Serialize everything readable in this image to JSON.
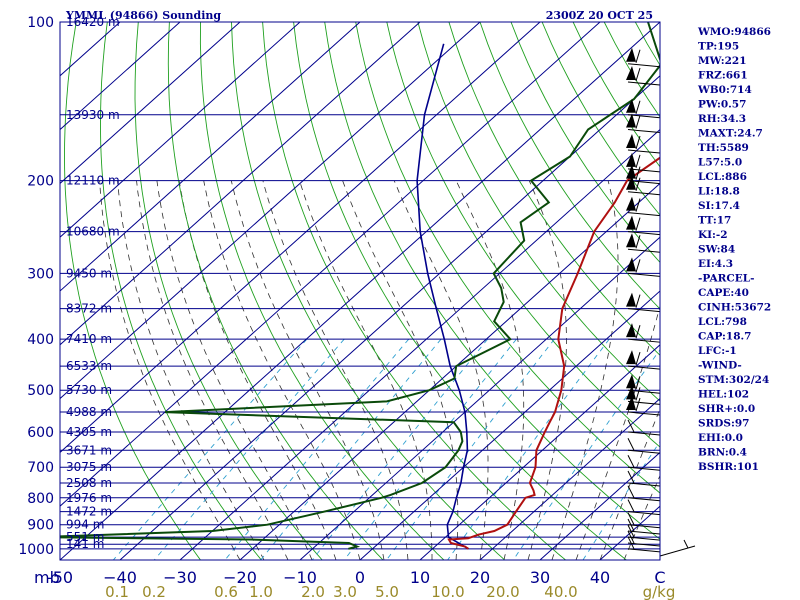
{
  "chart_data": {
    "type": "line",
    "title": "YMML (94866) Sounding",
    "timestamp": "2300Z 20 OCT 25",
    "pressure_levels": [
      100,
      200,
      300,
      400,
      500,
      600,
      700,
      800,
      900,
      1000
    ],
    "pressure_labels": [
      "100",
      "200",
      "300",
      "400",
      "500",
      "600",
      "700",
      "800",
      "900",
      "1000"
    ],
    "height_levels": [
      {
        "p": 100,
        "label": "16420 m"
      },
      {
        "p": 150,
        "label": "13930 m"
      },
      {
        "p": 200,
        "label": "12110 m"
      },
      {
        "p": 250,
        "label": "10680 m"
      },
      {
        "p": 300,
        "label": "9450 m"
      },
      {
        "p": 350,
        "label": "8372 m"
      },
      {
        "p": 400,
        "label": "7410 m"
      },
      {
        "p": 450,
        "label": "6533 m"
      },
      {
        "p": 500,
        "label": "5730 m"
      },
      {
        "p": 550,
        "label": "4988 m"
      },
      {
        "p": 600,
        "label": "4305 m"
      },
      {
        "p": 650,
        "label": "3671 m"
      },
      {
        "p": 700,
        "label": "3075 m"
      },
      {
        "p": 750,
        "label": "2508 m"
      },
      {
        "p": 800,
        "label": "1976 m"
      },
      {
        "p": 850,
        "label": "1472 m"
      },
      {
        "p": 900,
        "label": "994 m"
      },
      {
        "p": 950,
        "label": "551 m"
      },
      {
        "p": 980,
        "label": "141 m"
      }
    ],
    "x_unit_label": "mb",
    "temperature_ticks": [
      -50,
      -40,
      -30,
      -20,
      -10,
      0,
      10,
      20,
      30,
      40,
      50
    ],
    "temperature_tick_labels": [
      "-50",
      "−40",
      "−30",
      "−20",
      "−10",
      "0",
      "10",
      "20",
      "30",
      "40",
      "C"
    ],
    "mixing_ratio_labels": [
      "0.1",
      "0.2",
      "0.6",
      "1.0",
      "2.0",
      "3.0",
      "5.0",
      "10.0",
      "20.0",
      "40.0",
      "g/kg"
    ],
    "mixing_ratio_values": [
      0.1,
      0.2,
      0.6,
      1.0,
      2.0,
      3.0,
      5.0,
      10.0,
      20.0,
      40.0
    ],
    "temperature_profile": [
      [
        1000,
        16
      ],
      [
        990,
        15
      ],
      [
        975,
        12
      ],
      [
        960,
        11
      ],
      [
        955,
        14
      ],
      [
        940,
        15
      ],
      [
        925,
        17
      ],
      [
        900,
        18
      ],
      [
        850,
        17
      ],
      [
        800,
        16
      ],
      [
        790,
        17
      ],
      [
        775,
        16
      ],
      [
        750,
        14
      ],
      [
        700,
        12
      ],
      [
        650,
        9
      ],
      [
        600,
        7
      ],
      [
        575,
        6
      ],
      [
        550,
        5
      ],
      [
        500,
        2
      ],
      [
        450,
        -2
      ],
      [
        400,
        -8
      ],
      [
        350,
        -13
      ],
      [
        300,
        -17
      ],
      [
        250,
        -22
      ],
      [
        220,
        -24
      ],
      [
        200,
        -26
      ],
      [
        170,
        -24
      ],
      [
        150,
        -27
      ],
      [
        130,
        -32
      ],
      [
        110,
        -36
      ],
      [
        100,
        -39
      ]
    ],
    "dewpoint_profile": [
      [
        1000,
        -4
      ],
      [
        990,
        -3
      ],
      [
        975,
        -5
      ],
      [
        960,
        -22
      ],
      [
        950,
        -58
      ],
      [
        925,
        -30
      ],
      [
        900,
        -22
      ],
      [
        850,
        -15
      ],
      [
        800,
        -8
      ],
      [
        790,
        -7
      ],
      [
        750,
        -4
      ],
      [
        700,
        -3
      ],
      [
        650,
        -4
      ],
      [
        625,
        -5
      ],
      [
        600,
        -7
      ],
      [
        575,
        -10
      ],
      [
        550,
        -60
      ],
      [
        525,
        -25
      ],
      [
        500,
        -20
      ],
      [
        475,
        -18
      ],
      [
        450,
        -20
      ],
      [
        400,
        -16
      ],
      [
        370,
        -22
      ],
      [
        340,
        -24
      ],
      [
        320,
        -27
      ],
      [
        300,
        -31
      ],
      [
        260,
        -32
      ],
      [
        240,
        -36
      ],
      [
        220,
        -35
      ],
      [
        200,
        -42
      ],
      [
        180,
        -40
      ],
      [
        160,
        -42
      ],
      [
        140,
        -40
      ],
      [
        120,
        -42
      ],
      [
        100,
        -52
      ]
    ],
    "parcel_profile": [
      [
        1000,
        16
      ],
      [
        950,
        10.5
      ],
      [
        900,
        8
      ],
      [
        850,
        6.5
      ],
      [
        800,
        4.5
      ],
      [
        750,
        2.5
      ],
      [
        700,
        0
      ],
      [
        650,
        -2.5
      ],
      [
        600,
        -6
      ],
      [
        550,
        -10
      ],
      [
        500,
        -15
      ],
      [
        450,
        -21
      ],
      [
        400,
        -27
      ],
      [
        350,
        -34
      ],
      [
        300,
        -42
      ],
      [
        250,
        -51
      ],
      [
        200,
        -61
      ],
      [
        150,
        -72
      ],
      [
        110,
        -82
      ]
    ],
    "wind_levels_mb": [
      120,
      130,
      150,
      160,
      175,
      190,
      200,
      210,
      230,
      250,
      270,
      300,
      350,
      400,
      450,
      500,
      525,
      550,
      600,
      650,
      700,
      750,
      800,
      850,
      900,
      925,
      950,
      975,
      1000
    ],
    "indices": [
      "WMO:94866",
      "TP:195",
      "MW:221",
      "FRZ:661",
      "WB0:714",
      "PW:0.57",
      "RH:34.3",
      "MAXT:24.7",
      "TH:5589",
      "L57:5.0",
      "LCL:886",
      "LI:18.8",
      "SI:17.4",
      "TT:17",
      "KI:-2",
      "SW:84",
      "EI:4.3",
      "-PARCEL-",
      "CAPE:40",
      "CINH:53672",
      "LCL:798",
      "CAP:18.7",
      "LFC:-1",
      "-WIND-",
      "STM:302/24",
      "HEL:102",
      "SHR+:0.0",
      "SRDS:97",
      "EHI:0.0",
      "BRN:0.4",
      "BSHR:101"
    ],
    "colors": {
      "isobar": "#00008b",
      "isotherm": "#00008b",
      "dry_adiabat": "#20a020",
      "moist_adiabat": "#303030",
      "mixing_ratio": "#30a0d0",
      "temperature": "#b01010",
      "dewpoint": "#0a4a0a",
      "parcel": "#00008b",
      "text": "#00008b",
      "mixing_label": "#9a8a2a"
    }
  }
}
